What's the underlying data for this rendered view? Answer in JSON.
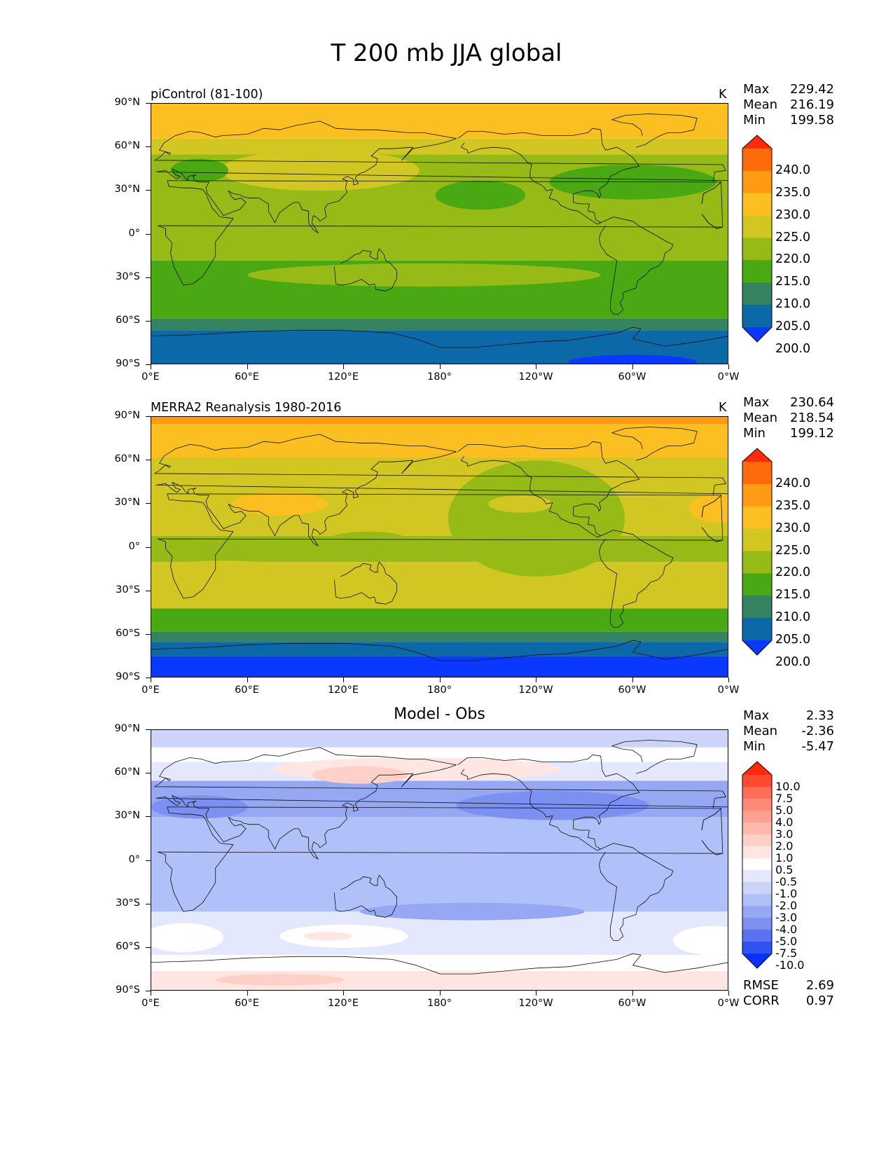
{
  "figure": {
    "title": "T 200 mb JJA global"
  },
  "axes": {
    "lat_labels": [
      "90°N",
      "60°N",
      "30°N",
      "0°",
      "30°S",
      "60°S",
      "90°S"
    ],
    "lon_labels": [
      "0°E",
      "60°E",
      "120°E",
      "180°",
      "120°W",
      "60°W",
      "0°W"
    ]
  },
  "panels": [
    {
      "title": "piControl (81-100)",
      "units": "K",
      "stats": [
        {
          "label": "Max",
          "value": "229.42"
        },
        {
          "label": "Mean",
          "value": "216.19"
        },
        {
          "label": "Min",
          "value": "199.58"
        }
      ],
      "colorbar": {
        "levels": [
          "240.0",
          "235.0",
          "230.0",
          "225.0",
          "220.0",
          "215.0",
          "210.0",
          "205.0",
          "200.0"
        ],
        "colors": [
          "#ff2a0a",
          "#ff6a0a",
          "#ff9a14",
          "#fcbf22",
          "#d2c722",
          "#96ba16",
          "#4aa812",
          "#358360",
          "#0a69a6",
          "#0a38ff"
        ]
      }
    },
    {
      "title": "MERRA2 Reanalysis 1980-2016",
      "units": "K",
      "stats": [
        {
          "label": "Max",
          "value": "230.64"
        },
        {
          "label": "Mean",
          "value": "218.54"
        },
        {
          "label": "Min",
          "value": "199.12"
        }
      ],
      "colorbar": {
        "levels": [
          "240.0",
          "235.0",
          "230.0",
          "225.0",
          "220.0",
          "215.0",
          "210.0",
          "205.0",
          "200.0"
        ],
        "colors": [
          "#ff2a0a",
          "#ff6a0a",
          "#ff9a14",
          "#fcbf22",
          "#d2c722",
          "#96ba16",
          "#4aa812",
          "#358360",
          "#0a69a6",
          "#0a38ff"
        ]
      }
    },
    {
      "title": "Model - Obs",
      "units": "",
      "stats": [
        {
          "label": "Max",
          "value": "2.33"
        },
        {
          "label": "Mean",
          "value": "-2.36"
        },
        {
          "label": "Min",
          "value": "-5.47"
        }
      ],
      "colorbar": {
        "levels": [
          "10.0",
          "7.5",
          "5.0",
          "4.0",
          "3.0",
          "2.0",
          "1.0",
          "0.5",
          "-0.5",
          "-1.0",
          "-2.0",
          "-3.0",
          "-4.0",
          "-5.0",
          "-7.5",
          "-10.0"
        ],
        "colors": [
          "#ff2a0a",
          "#ff4a30",
          "#ff6e58",
          "#ff8a78",
          "#ffa090",
          "#ffb8ac",
          "#ffd0c8",
          "#ffe6e2",
          "#ffffff",
          "#e4e8fc",
          "#ccd4fa",
          "#b0c0f8",
          "#96a8f4",
          "#7c90f2",
          "#5a72f0",
          "#3052f0",
          "#0a30ff"
        ]
      },
      "extra": [
        {
          "label": "RMSE",
          "value": "2.69"
        },
        {
          "label": "CORR",
          "value": "0.97"
        }
      ]
    }
  ]
}
